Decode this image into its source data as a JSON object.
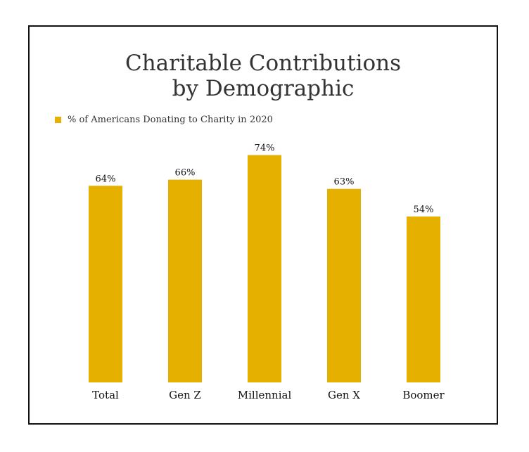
{
  "chart_data": {
    "type": "bar",
    "title": [
      "Charitable Contributions",
      "by Demographic"
    ],
    "categories": [
      "Total",
      "Gen Z",
      "Millennial",
      "Gen X",
      "Boomer"
    ],
    "series": [
      {
        "name": "% of Americans Donating to Charity in 2020",
        "values": [
          64,
          66,
          74,
          63,
          54
        ],
        "labels": [
          "64%",
          "66%",
          "74%",
          "63%",
          "54%"
        ],
        "color": "#E6B000"
      }
    ],
    "ylim": [
      0,
      100
    ],
    "grid": false,
    "legend": "top-left"
  }
}
